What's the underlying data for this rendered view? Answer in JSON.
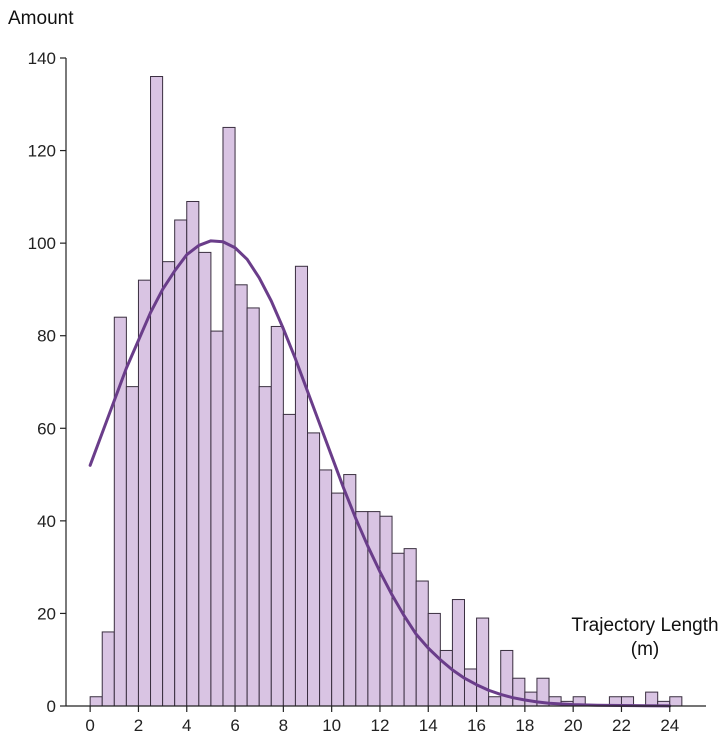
{
  "chart_data": {
    "type": "bar",
    "title": "",
    "ylabel": "Amount",
    "xlabel": "Trajectory Length (m)",
    "xlim": [
      -1,
      25.5
    ],
    "ylim": [
      0,
      140
    ],
    "xticks": [
      0,
      2,
      4,
      6,
      8,
      10,
      12,
      14,
      16,
      18,
      20,
      22,
      24
    ],
    "yticks": [
      0,
      20,
      40,
      60,
      80,
      100,
      120,
      140
    ],
    "grid": false,
    "bin_width": 0.5,
    "bin_starts": [
      0,
      0.5,
      1,
      1.5,
      2,
      2.5,
      3,
      3.5,
      4,
      4.5,
      5,
      5.5,
      6,
      6.5,
      7,
      7.5,
      8,
      8.5,
      9,
      9.5,
      10,
      10.5,
      11,
      11.5,
      12,
      12.5,
      13,
      13.5,
      14,
      14.5,
      15,
      15.5,
      16,
      16.5,
      17,
      17.5,
      18,
      18.5,
      19,
      19.5,
      20,
      20.5,
      21,
      21.5,
      22,
      22.5,
      23,
      23.5,
      24,
      24.5
    ],
    "values": [
      2,
      16,
      84,
      69,
      92,
      136,
      96,
      105,
      109,
      98,
      81,
      125,
      91,
      86,
      69,
      82,
      63,
      95,
      59,
      51,
      46,
      50,
      42,
      42,
      41,
      33,
      34,
      27,
      20,
      12,
      23,
      8,
      19,
      2,
      12,
      6,
      3,
      6,
      2,
      1,
      2,
      0,
      0,
      2,
      2,
      0,
      3,
      1,
      2,
      0
    ],
    "bar_color": "#d9c4e3",
    "bar_edge_color": "#3a2f40",
    "curve": {
      "type": "density_fit",
      "color": "#6a3d8a",
      "x": [
        0,
        0.5,
        1,
        1.5,
        2,
        2.5,
        3,
        3.5,
        4,
        4.5,
        5,
        5.5,
        6,
        6.5,
        7,
        7.5,
        8,
        8.5,
        9,
        9.5,
        10,
        10.5,
        11,
        11.5,
        12,
        12.5,
        13,
        13.5,
        14,
        14.5,
        15,
        15.5,
        16,
        16.5,
        17,
        17.5,
        18,
        18.5,
        19,
        20,
        21,
        22,
        23,
        24
      ],
      "y": [
        52,
        59,
        66,
        73,
        79,
        85,
        90,
        94,
        97.5,
        99.5,
        100.5,
        100.3,
        99,
        96.5,
        92.5,
        87.5,
        81.5,
        75,
        68,
        61,
        54,
        47,
        40.5,
        34.5,
        29,
        24,
        19.5,
        15.5,
        12.5,
        10,
        7.8,
        6,
        4.6,
        3.4,
        2.5,
        1.8,
        1.3,
        0.9,
        0.6,
        0.3,
        0.15,
        0.1,
        0.05,
        0.03
      ]
    }
  }
}
